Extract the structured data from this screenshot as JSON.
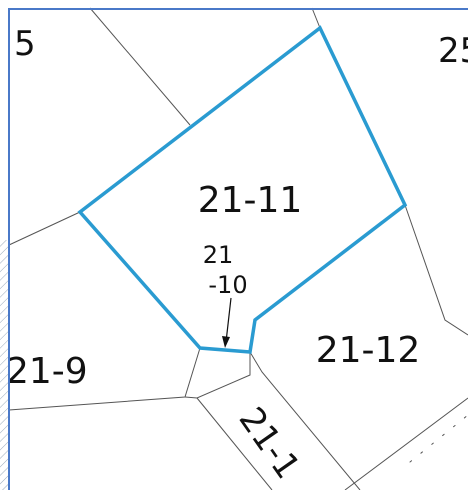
{
  "labels": {
    "corner_left": "5",
    "corner_right": "25",
    "parcel_main": "21-11",
    "parcel_small": [
      "21",
      "-10"
    ],
    "parcel_left": "21-9",
    "parcel_right": "21-12",
    "parcel_bottom": "21-1"
  }
}
